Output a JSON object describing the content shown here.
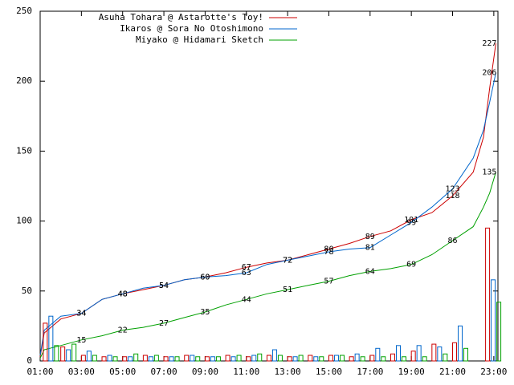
{
  "chart_data": [
    {
      "type": "line",
      "xlim": [
        1,
        23.2
      ],
      "ylim": [
        0,
        250
      ],
      "xticks": [
        {
          "value": 1,
          "label": "01:00"
        },
        {
          "value": 3,
          "label": "03:00"
        },
        {
          "value": 5,
          "label": "05:00"
        },
        {
          "value": 7,
          "label": "07:00"
        },
        {
          "value": 9,
          "label": "09:00"
        },
        {
          "value": 11,
          "label": "11:00"
        },
        {
          "value": 13,
          "label": "13:00"
        },
        {
          "value": 15,
          "label": "15:00"
        },
        {
          "value": 17,
          "label": "17:00"
        },
        {
          "value": 19,
          "label": "19:00"
        },
        {
          "value": 21,
          "label": "21:00"
        },
        {
          "value": 23,
          "label": "23:00"
        }
      ],
      "yticks": [
        0,
        50,
        100,
        150,
        200,
        250
      ],
      "legend": "top-left",
      "x": [
        1,
        1.2,
        2,
        3,
        4,
        5,
        6,
        7,
        8,
        9,
        10,
        11,
        12,
        13,
        14,
        15,
        16,
        17,
        18,
        19,
        20,
        21,
        22,
        22.5,
        22.8,
        23.1
      ],
      "series": [
        {
          "name": "Asuha Tohara @ Astarotte's Toy!",
          "color": "#cc0000",
          "values": [
            3,
            20,
            30,
            34,
            44,
            48,
            51,
            54,
            58,
            60,
            63,
            67,
            70,
            72,
            76,
            80,
            84,
            89,
            93,
            101,
            106,
            118,
            135,
            160,
            195,
            227
          ],
          "value_labels": [
            null,
            null,
            null,
            34,
            null,
            48,
            null,
            54,
            null,
            60,
            null,
            67,
            null,
            72,
            null,
            80,
            null,
            89,
            null,
            101,
            null,
            118,
            null,
            null,
            null,
            227
          ]
        },
        {
          "name": "Ikaros @ Sora No Otoshimono",
          "color": "#0066cc",
          "values": [
            4,
            22,
            32,
            34,
            44,
            48,
            52,
            54,
            58,
            60,
            61,
            63,
            69,
            72,
            75,
            78,
            80,
            81,
            90,
            99,
            110,
            123,
            145,
            165,
            185,
            206
          ],
          "value_labels": [
            null,
            null,
            null,
            34,
            null,
            48,
            null,
            54,
            null,
            60,
            null,
            63,
            null,
            72,
            null,
            78,
            null,
            81,
            null,
            99,
            null,
            123,
            null,
            null,
            null,
            206
          ]
        },
        {
          "name": "Miyako @ Hidamari Sketch",
          "color": "#00a000",
          "values": [
            2,
            8,
            11,
            15,
            18,
            22,
            24,
            27,
            31,
            35,
            40,
            44,
            48,
            51,
            54,
            57,
            61,
            64,
            66,
            69,
            76,
            86,
            96,
            110,
            120,
            135
          ],
          "value_labels": [
            null,
            null,
            null,
            15,
            null,
            22,
            null,
            27,
            null,
            35,
            null,
            44,
            null,
            51,
            null,
            57,
            null,
            64,
            null,
            69,
            null,
            86,
            null,
            null,
            null,
            135
          ]
        }
      ]
    },
    {
      "type": "bar",
      "xlim": [
        1,
        23.2
      ],
      "ylim": [
        0,
        250
      ],
      "x": [
        1.15,
        2,
        3,
        4,
        5,
        6,
        7,
        8,
        9,
        10,
        11,
        12,
        13,
        14,
        15,
        16,
        17,
        18,
        19,
        20,
        21,
        22.6
      ],
      "series": [
        {
          "color": "#cc0000",
          "values": [
            27,
            10,
            4,
            3,
            3,
            4,
            3,
            4,
            3,
            4,
            3,
            4,
            3,
            4,
            4,
            3,
            4,
            5,
            7,
            12,
            13,
            95
          ]
        },
        {
          "color": "#0066cc",
          "values": [
            32,
            8,
            7,
            4,
            3,
            3,
            3,
            4,
            3,
            3,
            4,
            8,
            3,
            3,
            4,
            5,
            9,
            11,
            11,
            10,
            25,
            58
          ]
        },
        {
          "color": "#00a000",
          "values": [
            11,
            12,
            4,
            3,
            5,
            4,
            3,
            3,
            3,
            4,
            5,
            4,
            4,
            3,
            4,
            3,
            3,
            3,
            3,
            5,
            9,
            42
          ]
        }
      ]
    }
  ]
}
